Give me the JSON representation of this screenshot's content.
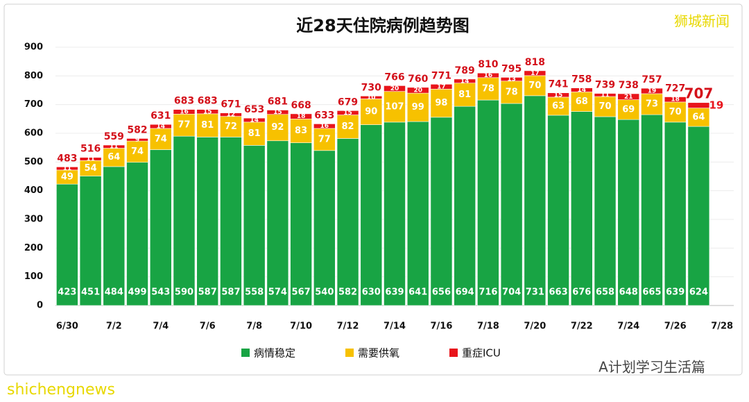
{
  "chart_data": {
    "type": "stacked_bar",
    "title": "近28天住院病例趋势图",
    "categories": [
      "6/30",
      null,
      "7/2",
      null,
      "7/4",
      null,
      "7/6",
      null,
      "7/8",
      null,
      "7/10",
      null,
      "7/12",
      null,
      "7/14",
      null,
      "7/16",
      null,
      "7/18",
      null,
      "7/20",
      null,
      "7/22",
      null,
      "7/24",
      null,
      "7/26",
      null,
      "7/28"
    ],
    "series": [
      {
        "name": "病情稳定",
        "color": "#18a444",
        "values": [
          423,
          451,
          484,
          499,
          543,
          590,
          587,
          587,
          558,
          574,
          567,
          540,
          582,
          630,
          639,
          641,
          656,
          694,
          716,
          704,
          731,
          663,
          676,
          658,
          648,
          665,
          639,
          624,
          null
        ]
      },
      {
        "name": "需要供氧",
        "color": "#f7c100",
        "values": [
          49,
          54,
          64,
          74,
          74,
          77,
          81,
          72,
          81,
          92,
          83,
          77,
          82,
          90,
          107,
          99,
          98,
          81,
          78,
          78,
          70,
          63,
          68,
          70,
          69,
          73,
          70,
          64,
          null
        ]
      },
      {
        "name": "重症ICU",
        "color": "#e8141b",
        "values": [
          11,
          11,
          11,
          9,
          14,
          16,
          15,
          12,
          14,
          15,
          18,
          16,
          15,
          10,
          20,
          20,
          17,
          14,
          16,
          13,
          17,
          15,
          14,
          11,
          21,
          19,
          18,
          19,
          null
        ]
      }
    ],
    "totals": [
      483,
      516,
      559,
      582,
      631,
      683,
      683,
      671,
      653,
      681,
      668,
      633,
      679,
      730,
      766,
      760,
      771,
      789,
      810,
      795,
      818,
      741,
      758,
      739,
      738,
      757,
      727,
      707,
      null
    ],
    "ylim": [
      0,
      900
    ],
    "yticks": [
      0,
      100,
      200,
      300,
      400,
      500,
      600,
      700,
      800,
      900
    ],
    "grid": true,
    "legend": "bottom",
    "watermarks": [
      "狮城新闻",
      "A计划学习生活篇",
      "shichengnews"
    ]
  }
}
